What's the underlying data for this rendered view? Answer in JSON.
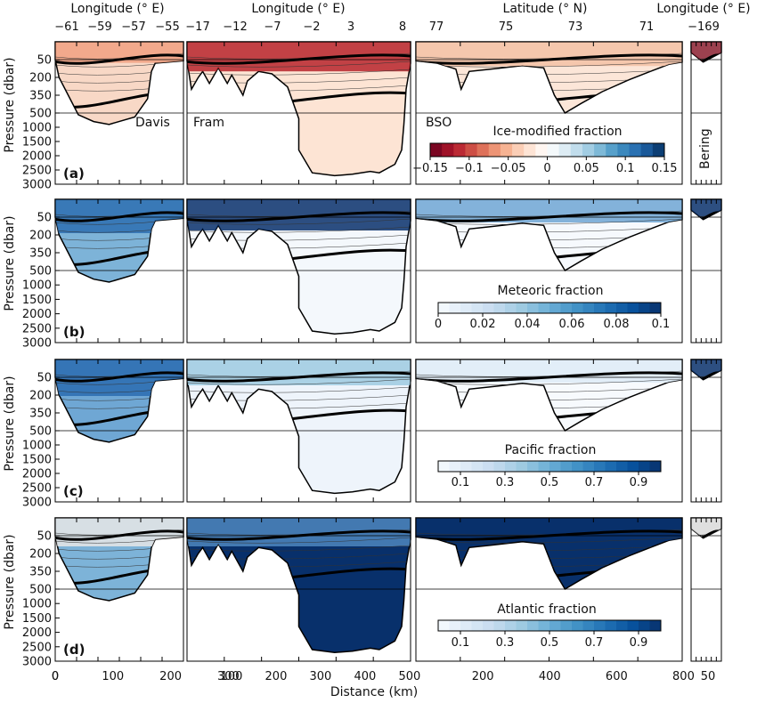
{
  "figure": {
    "x_axis_label": "Distance (km)",
    "y_axis_label": "Pressure (dbar)",
    "y_ticks": [
      50,
      200,
      350,
      500,
      1000,
      1500,
      2000,
      2500,
      3000
    ],
    "top_axes": [
      {
        "label": "Longitude (° E)",
        "ticks": [
          "−61",
          "−59",
          "−57",
          "−55"
        ]
      },
      {
        "label": "Longitude (° E)",
        "ticks": [
          "−17",
          "−12",
          "−7",
          "−2",
          "3",
          "8"
        ]
      },
      {
        "label": "Latitude (° N)",
        "ticks": [
          "77",
          "75",
          "73",
          "71"
        ]
      },
      {
        "label": "Longitude (° E)",
        "ticks": [
          "−169"
        ]
      }
    ],
    "bottom_axes": [
      {
        "ticks": [
          0,
          100,
          200,
          300
        ]
      },
      {
        "ticks": [
          100,
          200,
          300,
          400,
          500
        ]
      },
      {
        "ticks": [
          200,
          400,
          600,
          800
        ]
      },
      {
        "ticks": [
          50
        ]
      }
    ],
    "section_labels": [
      "Davis",
      "Fram",
      "BSO",
      "Bering"
    ]
  },
  "chart_data": [
    {
      "type": "heatmap",
      "panel": "(a)",
      "title": "Ice-modified fraction",
      "colorbar_ticks": [
        "−0.15",
        "−0.1",
        "−0.05",
        "0",
        "0.05",
        "0.1",
        "0.15"
      ],
      "colorbar_range": [
        -0.15,
        0.15
      ],
      "colormap": [
        "#67001f",
        "#b2182b",
        "#d6604d",
        "#f4a582",
        "#fddbc7",
        "#ffffff",
        "#d1e5f0",
        "#92c5de",
        "#4393c3",
        "#2166ac",
        "#053061"
      ],
      "ylim": [
        0,
        3000
      ]
    },
    {
      "type": "heatmap",
      "panel": "(b)",
      "title": "Meteoric fraction",
      "colorbar_ticks": [
        "0",
        "0.02",
        "0.04",
        "0.06",
        "0.08",
        "0.1"
      ],
      "colorbar_range": [
        0,
        0.1
      ],
      "colormap": [
        "#f7fbff",
        "#deebf7",
        "#c6dbef",
        "#9ecae1",
        "#6baed6",
        "#4292c6",
        "#2171b5",
        "#08519c",
        "#08306b"
      ],
      "ylim": [
        0,
        3000
      ]
    },
    {
      "type": "heatmap",
      "panel": "(c)",
      "title": "Pacific fraction",
      "colorbar_ticks": [
        "0.1",
        "0.3",
        "0.5",
        "0.7",
        "0.9"
      ],
      "colorbar_range": [
        0,
        1
      ],
      "colormap": [
        "#f7fbff",
        "#deebf7",
        "#c6dbef",
        "#9ecae1",
        "#6baed6",
        "#4292c6",
        "#2171b5",
        "#08519c",
        "#08306b"
      ],
      "ylim": [
        0,
        3000
      ]
    },
    {
      "type": "heatmap",
      "panel": "(d)",
      "title": "Atlantic fraction",
      "colorbar_ticks": [
        "0.1",
        "0.3",
        "0.5",
        "0.7",
        "0.9"
      ],
      "colorbar_range": [
        0,
        1
      ],
      "colormap": [
        "#f7fbff",
        "#deebf7",
        "#c6dbef",
        "#9ecae1",
        "#6baed6",
        "#4292c6",
        "#2171b5",
        "#08519c",
        "#08306b"
      ],
      "ylim": [
        0,
        3000
      ]
    }
  ]
}
